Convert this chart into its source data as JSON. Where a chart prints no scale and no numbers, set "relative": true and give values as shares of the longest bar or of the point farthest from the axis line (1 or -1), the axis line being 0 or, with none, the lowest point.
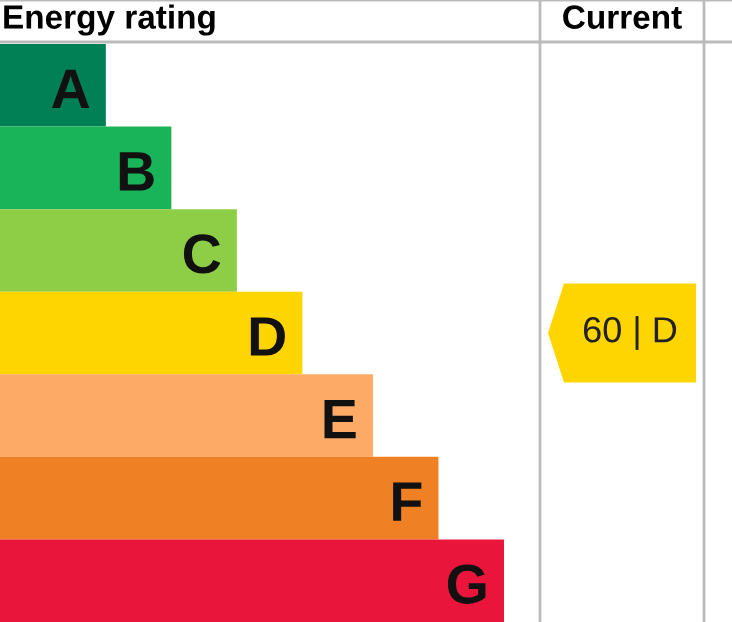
{
  "chart_data": {
    "type": "bar",
    "orientation": "horizontal",
    "relative": true,
    "title": "Energy rating",
    "categories": [
      "A",
      "B",
      "C",
      "D",
      "E",
      "F",
      "G"
    ],
    "values": [
      0.21,
      0.34,
      0.47,
      0.6,
      0.74,
      0.87,
      1
    ],
    "colors": [
      "#008054",
      "#19b459",
      "#8dce46",
      "#ffd500",
      "#fcaa65",
      "#ef8023",
      "#e9153b"
    ],
    "annotations": [
      "Current",
      "60 | D"
    ]
  }
}
